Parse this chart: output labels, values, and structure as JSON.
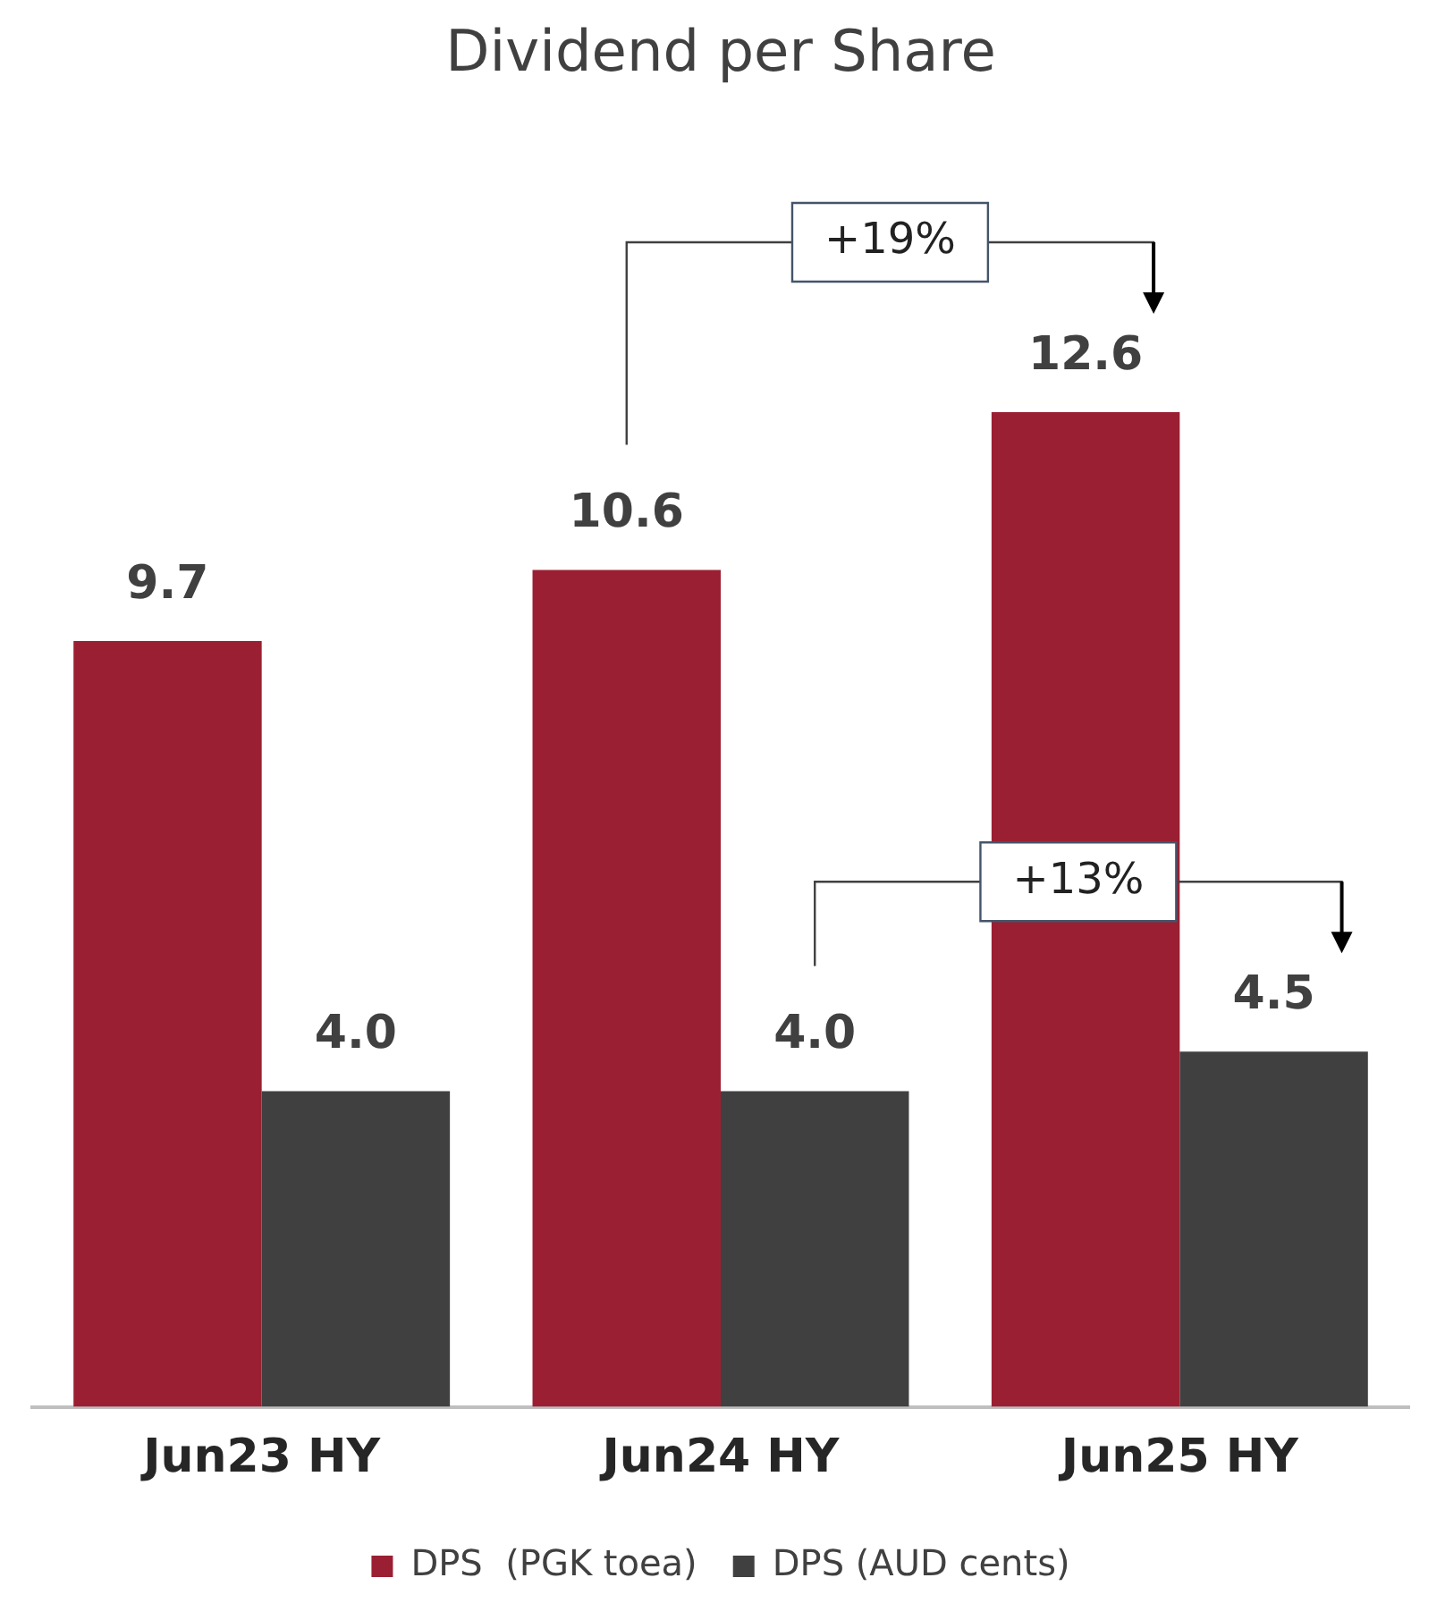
{
  "chart_data": {
    "type": "bar",
    "title": "Dividend per Share",
    "categories": [
      "Jun23 HY",
      "Jun24 HY",
      "Jun25 HY"
    ],
    "series": [
      {
        "name": "DPS  (PGK toea)",
        "color": "#9b1f32",
        "values": [
          9.7,
          10.6,
          12.6
        ],
        "value_labels": [
          "9.7",
          "10.6",
          "12.6"
        ]
      },
      {
        "name": "DPS (AUD cents)",
        "color": "#404040",
        "values": [
          4.0,
          4.0,
          4.5
        ],
        "value_labels": [
          "4.0",
          "4.0",
          "4.5"
        ]
      }
    ],
    "annotations": [
      "+19%",
      "+13%"
    ],
    "legend": "bottom",
    "grid": false
  }
}
